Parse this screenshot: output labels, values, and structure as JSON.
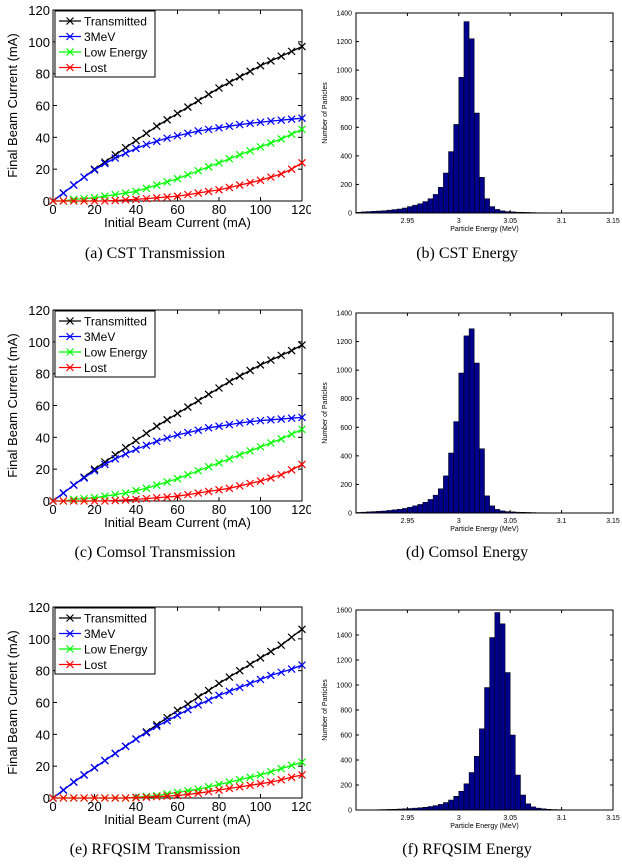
{
  "colors": {
    "transmitted": "#000000",
    "three_mev": "#0000ff",
    "low_energy": "#00ff00",
    "lost": "#ff0000",
    "histogram_bar": "#00008b"
  },
  "chart_data": [
    {
      "type": "line",
      "caption": "(a) CST Transmission",
      "xlabel": "Initial Beam Current (mA)",
      "ylabel": "Final Beam Current (mA)",
      "xlim": [
        0,
        120
      ],
      "ylim": [
        0,
        120
      ],
      "xticks": [
        0,
        20,
        40,
        60,
        80,
        100,
        120
      ],
      "yticks": [
        0,
        20,
        40,
        60,
        80,
        100,
        120
      ],
      "legend_position": "top-left",
      "x": [
        0,
        5,
        10,
        15,
        20,
        25,
        30,
        35,
        40,
        45,
        50,
        55,
        60,
        65,
        70,
        75,
        80,
        85,
        90,
        95,
        100,
        105,
        110,
        115,
        120
      ],
      "series": [
        {
          "name": "Transmitted",
          "values": [
            0,
            5,
            10,
            15,
            20,
            24.5,
            29,
            33.5,
            38,
            42.5,
            47,
            51,
            55,
            59,
            63,
            67,
            71,
            74.5,
            78,
            81.5,
            85,
            88,
            91,
            94,
            97
          ]
        },
        {
          "name": "3MeV",
          "values": [
            0,
            5,
            10,
            15,
            19.5,
            23.5,
            27,
            30,
            33,
            35.5,
            37.5,
            39.5,
            41,
            42.5,
            44,
            45,
            46,
            47,
            48,
            48.8,
            49.5,
            50.2,
            50.8,
            51.4,
            52
          ]
        },
        {
          "name": "Low Energy",
          "values": [
            0,
            0,
            1,
            1.5,
            2,
            3,
            4,
            5,
            6,
            8,
            10,
            12,
            14,
            16.5,
            19,
            21.5,
            24,
            26.5,
            29,
            31.5,
            34,
            36.5,
            39,
            42,
            45
          ]
        },
        {
          "name": "Lost",
          "values": [
            0,
            0,
            0,
            0,
            0,
            0,
            0.3,
            0.7,
            1,
            1.5,
            2,
            2.5,
            3,
            4,
            5,
            6,
            7,
            8.5,
            10,
            11.5,
            13,
            15,
            17,
            20,
            24
          ]
        }
      ]
    },
    {
      "type": "bar",
      "caption": "(b) CST Energy",
      "xlabel": "Particle Energy (MeV)",
      "ylabel": "Number of Particles",
      "xlim": [
        2.9,
        3.15
      ],
      "ylim": [
        0,
        1400
      ],
      "xticks": [
        2.95,
        3,
        3.05,
        3.1,
        3.15
      ],
      "yticks": [
        0,
        200,
        400,
        600,
        800,
        1000,
        1200,
        1400
      ],
      "bin_width": 0.005,
      "bins": [
        2.9,
        2.905,
        2.91,
        2.915,
        2.92,
        2.925,
        2.93,
        2.935,
        2.94,
        2.945,
        2.95,
        2.955,
        2.96,
        2.965,
        2.97,
        2.975,
        2.98,
        2.985,
        2.99,
        2.995,
        3.0,
        3.005,
        3.01,
        3.015,
        3.02,
        3.025,
        3.03,
        3.035,
        3.04,
        3.045,
        3.05,
        3.055,
        3.06,
        3.065,
        3.07,
        3.075,
        3.08,
        3.085,
        3.09,
        3.095
      ],
      "values": [
        5,
        8,
        10,
        12,
        14,
        16,
        20,
        24,
        28,
        35,
        45,
        55,
        65,
        80,
        100,
        130,
        180,
        280,
        430,
        620,
        950,
        1340,
        1220,
        700,
        250,
        100,
        45,
        25,
        15,
        10,
        8,
        6,
        5,
        4,
        3,
        2,
        2,
        1,
        1,
        1
      ]
    },
    {
      "type": "line",
      "caption": "(c) Comsol Transmission",
      "xlabel": "Initial Beam Current (mA)",
      "ylabel": "Final Beam Current (mA)",
      "xlim": [
        0,
        120
      ],
      "ylim": [
        0,
        120
      ],
      "xticks": [
        0,
        20,
        40,
        60,
        80,
        100,
        120
      ],
      "yticks": [
        0,
        20,
        40,
        60,
        80,
        100,
        120
      ],
      "legend_position": "top-left",
      "x": [
        0,
        5,
        10,
        15,
        20,
        25,
        30,
        35,
        40,
        45,
        50,
        55,
        60,
        65,
        70,
        75,
        80,
        85,
        90,
        95,
        100,
        105,
        110,
        115,
        120
      ],
      "series": [
        {
          "name": "Transmitted",
          "values": [
            0,
            5,
            10,
            15,
            20,
            24.5,
            29,
            33.5,
            38,
            42.5,
            47,
            51,
            55,
            59,
            63,
            67,
            71,
            75,
            78.5,
            82,
            85.5,
            88.5,
            91.5,
            94.5,
            98
          ]
        },
        {
          "name": "3MeV",
          "values": [
            0,
            5,
            10,
            14.5,
            19,
            23,
            26.5,
            29.5,
            32.5,
            35,
            37.5,
            39.5,
            41.5,
            43,
            44.5,
            46,
            47,
            48,
            49,
            49.8,
            50.5,
            51,
            51.5,
            52,
            52.5
          ]
        },
        {
          "name": "Low Energy",
          "values": [
            0,
            0,
            1,
            1.5,
            2,
            3,
            4,
            5,
            6.5,
            8,
            10,
            12,
            14,
            16.5,
            19,
            21.5,
            24,
            26.5,
            29,
            31.5,
            34,
            36.5,
            39,
            42,
            45
          ]
        },
        {
          "name": "Lost",
          "values": [
            0,
            0,
            0,
            0,
            0,
            0,
            0.3,
            0.6,
            1,
            1.5,
            2,
            2.5,
            3,
            4,
            5,
            6,
            7,
            8,
            9.5,
            11,
            12.5,
            14.5,
            16.5,
            19.5,
            23
          ]
        }
      ]
    },
    {
      "type": "bar",
      "caption": "(d) Comsol Energy",
      "xlabel": "Particle Energy (MeV)",
      "ylabel": "Number of Particles",
      "xlim": [
        2.9,
        3.15
      ],
      "ylim": [
        0,
        1400
      ],
      "xticks": [
        2.95,
        3,
        3.05,
        3.1,
        3.15
      ],
      "yticks": [
        0,
        200,
        400,
        600,
        800,
        1000,
        1200,
        1400
      ],
      "bin_width": 0.005,
      "bins": [
        2.9,
        2.905,
        2.91,
        2.915,
        2.92,
        2.925,
        2.93,
        2.935,
        2.94,
        2.945,
        2.95,
        2.955,
        2.96,
        2.965,
        2.97,
        2.975,
        2.98,
        2.985,
        2.99,
        2.995,
        3.0,
        3.005,
        3.01,
        3.015,
        3.02,
        3.025,
        3.03,
        3.035,
        3.04,
        3.045,
        3.05,
        3.055,
        3.06,
        3.065,
        3.07,
        3.075,
        3.08,
        3.085,
        3.09,
        3.095
      ],
      "values": [
        4,
        6,
        8,
        10,
        12,
        14,
        18,
        22,
        26,
        32,
        40,
        50,
        60,
        75,
        95,
        125,
        170,
        260,
        420,
        640,
        980,
        1240,
        1290,
        1050,
        450,
        120,
        50,
        25,
        15,
        10,
        8,
        6,
        5,
        4,
        3,
        2,
        2,
        1,
        1,
        1
      ]
    },
    {
      "type": "line",
      "caption": "(e) RFQSIM Transmission",
      "xlabel": "Initial Beam Current (mA)",
      "ylabel": "Final Beam Current (mA)",
      "xlim": [
        0,
        120
      ],
      "ylim": [
        0,
        120
      ],
      "xticks": [
        0,
        20,
        40,
        60,
        80,
        100,
        120
      ],
      "yticks": [
        0,
        20,
        40,
        60,
        80,
        100,
        120
      ],
      "legend_position": "top-left",
      "x": [
        0,
        5,
        10,
        15,
        20,
        25,
        30,
        35,
        40,
        45,
        50,
        55,
        60,
        65,
        70,
        75,
        80,
        85,
        90,
        95,
        100,
        105,
        110,
        115,
        120
      ],
      "series": [
        {
          "name": "Transmitted",
          "values": [
            0,
            5,
            10,
            14.5,
            19,
            23.5,
            28,
            32.5,
            37,
            41.5,
            46,
            50.5,
            55,
            59,
            63.5,
            67.5,
            72,
            76,
            80,
            84,
            88,
            92,
            96,
            101,
            106
          ]
        },
        {
          "name": "3MeV",
          "values": [
            0,
            5,
            10,
            14.5,
            19,
            23.5,
            28,
            32.5,
            37,
            41,
            45,
            48.5,
            52,
            55.5,
            58.5,
            61.5,
            64.5,
            67,
            69.5,
            72,
            74.5,
            77,
            79,
            81,
            83.5
          ]
        },
        {
          "name": "Low Energy",
          "values": [
            0,
            0,
            0,
            0,
            0,
            0,
            0,
            0,
            0.5,
            1,
            1.5,
            2.5,
            3.5,
            4.5,
            5.5,
            7,
            8.5,
            10,
            11.5,
            13,
            14.5,
            16.5,
            18.5,
            20.5,
            22.5
          ]
        },
        {
          "name": "Lost",
          "values": [
            0,
            0,
            0,
            0,
            0,
            0,
            0,
            0,
            0.2,
            0.5,
            0.8,
            1.2,
            1.6,
            2.2,
            3,
            4,
            5,
            6,
            7,
            8,
            9,
            10,
            11.5,
            13,
            14.5
          ]
        }
      ]
    },
    {
      "type": "bar",
      "caption": "(f) RFQSIM Energy",
      "xlabel": "Particle Energy (MeV)",
      "ylabel": "Number of Particles",
      "xlim": [
        2.9,
        3.15
      ],
      "ylim": [
        0,
        1600
      ],
      "xticks": [
        2.95,
        3,
        3.05,
        3.1,
        3.15
      ],
      "yticks": [
        0,
        200,
        400,
        600,
        800,
        1000,
        1200,
        1400,
        1600
      ],
      "bin_width": 0.005,
      "bins": [
        2.9,
        2.905,
        2.91,
        2.915,
        2.92,
        2.925,
        2.93,
        2.935,
        2.94,
        2.945,
        2.95,
        2.955,
        2.96,
        2.965,
        2.97,
        2.975,
        2.98,
        2.985,
        2.99,
        2.995,
        3.0,
        3.005,
        3.01,
        3.015,
        3.02,
        3.025,
        3.03,
        3.035,
        3.04,
        3.045,
        3.05,
        3.055,
        3.06,
        3.065,
        3.07,
        3.075,
        3.08,
        3.085,
        3.09,
        3.095
      ],
      "values": [
        0,
        1,
        2,
        2,
        3,
        4,
        5,
        6,
        8,
        10,
        12,
        15,
        18,
        22,
        28,
        35,
        45,
        60,
        80,
        110,
        150,
        210,
        300,
        430,
        650,
        980,
        1380,
        1580,
        1490,
        1100,
        600,
        280,
        120,
        50,
        25,
        15,
        10,
        6,
        4,
        3
      ]
    }
  ]
}
